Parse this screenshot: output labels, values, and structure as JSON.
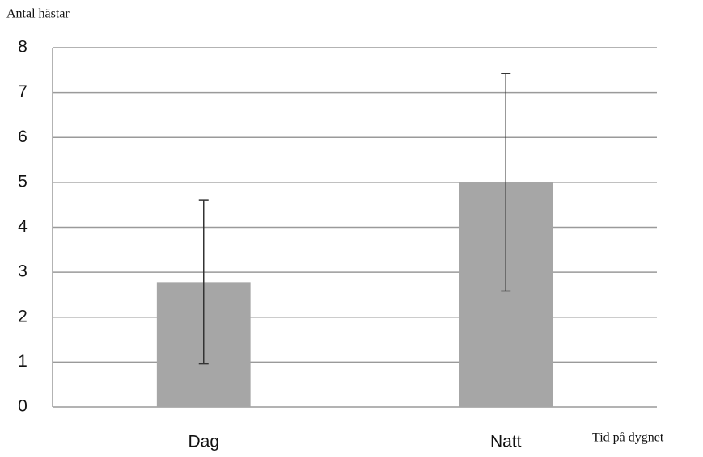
{
  "chart_data": {
    "type": "bar",
    "y_label": "Antal hästar",
    "x_label": "Tid på dygnet",
    "categories": [
      "Dag",
      "Natt"
    ],
    "values": [
      2.78,
      5.0
    ],
    "errors": [
      1.82,
      2.42
    ],
    "color": "#a6a6a6",
    "ylim": [
      0,
      8
    ],
    "yticks": [
      0,
      1,
      2,
      3,
      4,
      5,
      6,
      7,
      8
    ],
    "grid": true
  }
}
